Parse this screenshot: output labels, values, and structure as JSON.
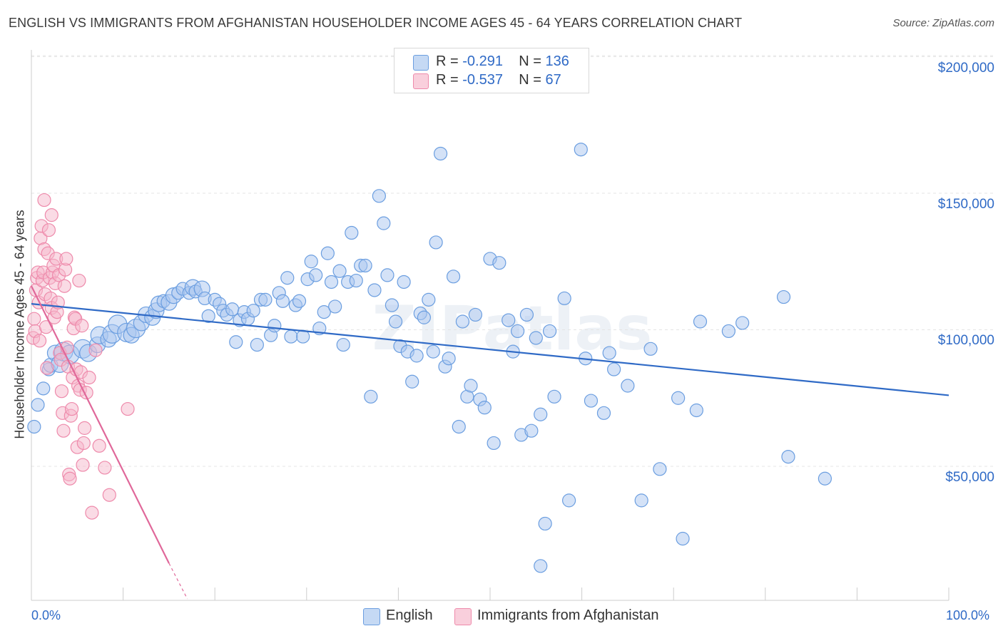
{
  "title": "ENGLISH VS IMMIGRANTS FROM AFGHANISTAN HOUSEHOLDER INCOME AGES 45 - 64 YEARS CORRELATION CHART",
  "source": "Source: ZipAtlas.com",
  "watermark": "ZIPatlas",
  "legend": {
    "rows": [
      {
        "r_label": "R = ",
        "r_value": "-0.291",
        "n_label": "N = ",
        "n_value": "136",
        "color": "#a9c6f0"
      },
      {
        "r_label": "R = ",
        "r_value": "-0.537",
        "n_label": "N = ",
        "n_value": "67",
        "color": "#f5b8cb"
      }
    ]
  },
  "chart_data": {
    "type": "scatter",
    "title": "ENGLISH VS IMMIGRANTS FROM AFGHANISTAN HOUSEHOLDER INCOME AGES 45 - 64 YEARS CORRELATION CHART",
    "xlabel": "",
    "ylabel": "Householder Income Ages 45 - 64 years",
    "xlim": [
      0,
      100
    ],
    "ylim": [
      5000,
      205000
    ],
    "x_tick_labels": [
      "0.0%",
      "100.0%"
    ],
    "y_ticks": [
      50000,
      100000,
      150000,
      200000
    ],
    "y_tick_labels": [
      "$50,000",
      "$100,000",
      "$150,000",
      "$200,000"
    ],
    "grid": true,
    "legend_position": "bottom",
    "series": [
      {
        "name": "English",
        "color": "#6b9ee0",
        "fill": "#a9c6f0",
        "trend": {
          "x": [
            0,
            100
          ],
          "y": [
            109500,
            76000
          ],
          "color": "#2f6ac6"
        },
        "points": [
          [
            0.3,
            64500,
            9
          ],
          [
            0.7,
            72500,
            9
          ],
          [
            1.3,
            78500,
            9
          ],
          [
            1.9,
            85500,
            9
          ],
          [
            2.1,
            87000,
            10
          ],
          [
            2.6,
            91500,
            11
          ],
          [
            3.1,
            87500,
            12
          ],
          [
            3.5,
            92000,
            13
          ],
          [
            4.2,
            91000,
            13
          ],
          [
            5.6,
            93000,
            13
          ],
          [
            6.2,
            91500,
            12
          ],
          [
            7.2,
            94500,
            11
          ],
          [
            7.4,
            98000,
            12
          ],
          [
            8.4,
            96500,
            11
          ],
          [
            8.8,
            98500,
            13
          ],
          [
            9.4,
            102000,
            13
          ],
          [
            10.4,
            99000,
            13
          ],
          [
            10.9,
            98000,
            11
          ],
          [
            11.4,
            100500,
            13
          ],
          [
            12.0,
            102500,
            11
          ],
          [
            12.5,
            105500,
            11
          ],
          [
            13.2,
            104500,
            11
          ],
          [
            13.6,
            107000,
            11
          ],
          [
            13.9,
            109500,
            11
          ],
          [
            14.4,
            110500,
            9
          ],
          [
            15.0,
            110000,
            11
          ],
          [
            15.5,
            112500,
            11
          ],
          [
            16.0,
            113500,
            9
          ],
          [
            16.5,
            115000,
            9
          ],
          [
            17.2,
            113500,
            9
          ],
          [
            17.6,
            115500,
            11
          ],
          [
            17.9,
            114000,
            9
          ],
          [
            18.6,
            115000,
            11
          ],
          [
            18.9,
            111500,
            9
          ],
          [
            19.3,
            105000,
            9
          ],
          [
            20.0,
            111000,
            9
          ],
          [
            20.5,
            109500,
            9
          ],
          [
            20.9,
            107000,
            9
          ],
          [
            21.3,
            105500,
            9
          ],
          [
            21.9,
            107500,
            9
          ],
          [
            22.3,
            95500,
            9
          ],
          [
            22.7,
            103500,
            9
          ],
          [
            23.2,
            106500,
            9
          ],
          [
            23.6,
            104000,
            9
          ],
          [
            24.2,
            107000,
            9
          ],
          [
            24.6,
            94500,
            9
          ],
          [
            25.0,
            111000,
            9
          ],
          [
            25.5,
            111000,
            9
          ],
          [
            26.1,
            98000,
            9
          ],
          [
            26.5,
            101500,
            9
          ],
          [
            27.0,
            113500,
            9
          ],
          [
            27.4,
            110500,
            9
          ],
          [
            27.9,
            119000,
            9
          ],
          [
            28.3,
            97500,
            9
          ],
          [
            28.8,
            109000,
            9
          ],
          [
            29.2,
            110500,
            9
          ],
          [
            29.6,
            97500,
            9
          ],
          [
            30.1,
            118500,
            9
          ],
          [
            30.5,
            125000,
            9
          ],
          [
            31.0,
            120000,
            9
          ],
          [
            31.4,
            100500,
            9
          ],
          [
            31.9,
            106500,
            9
          ],
          [
            32.3,
            128000,
            9
          ],
          [
            32.7,
            117500,
            9
          ],
          [
            33.1,
            108500,
            9
          ],
          [
            33.6,
            121500,
            9
          ],
          [
            34.0,
            94500,
            9
          ],
          [
            34.5,
            117500,
            9
          ],
          [
            34.9,
            135500,
            9
          ],
          [
            35.4,
            118000,
            9
          ],
          [
            35.9,
            123500,
            9
          ],
          [
            36.4,
            123500,
            9
          ],
          [
            37.0,
            75500,
            9
          ],
          [
            37.4,
            114500,
            9
          ],
          [
            37.9,
            149000,
            9
          ],
          [
            38.4,
            139000,
            9
          ],
          [
            38.8,
            120000,
            9
          ],
          [
            39.3,
            109000,
            9
          ],
          [
            39.7,
            103000,
            9
          ],
          [
            40.2,
            94000,
            9
          ],
          [
            40.6,
            117500,
            9
          ],
          [
            41.0,
            92000,
            9
          ],
          [
            41.5,
            81000,
            9
          ],
          [
            42.0,
            90500,
            9
          ],
          [
            42.4,
            106000,
            9
          ],
          [
            42.8,
            104500,
            9
          ],
          [
            43.3,
            111000,
            9
          ],
          [
            43.8,
            92000,
            9
          ],
          [
            44.1,
            132000,
            9
          ],
          [
            44.6,
            164500,
            9
          ],
          [
            45.1,
            86500,
            9
          ],
          [
            45.5,
            89500,
            9
          ],
          [
            46.0,
            119500,
            9
          ],
          [
            46.6,
            64500,
            9
          ],
          [
            47.0,
            103000,
            9
          ],
          [
            47.5,
            75500,
            9
          ],
          [
            47.9,
            79500,
            9
          ],
          [
            48.4,
            105500,
            9
          ],
          [
            48.9,
            74500,
            9
          ],
          [
            49.4,
            71500,
            9
          ],
          [
            50.0,
            126000,
            9
          ],
          [
            50.4,
            58500,
            9
          ],
          [
            51.0,
            124500,
            9
          ],
          [
            52.0,
            103500,
            9
          ],
          [
            52.5,
            92000,
            9
          ],
          [
            53.0,
            99500,
            9
          ],
          [
            53.4,
            61500,
            9
          ],
          [
            54.0,
            105500,
            9
          ],
          [
            54.5,
            63000,
            9
          ],
          [
            55.0,
            97000,
            9
          ],
          [
            55.5,
            69000,
            9
          ],
          [
            56.0,
            29000,
            9
          ],
          [
            57.0,
            75500,
            9
          ],
          [
            58.1,
            111500,
            9
          ],
          [
            58.6,
            37500,
            9
          ],
          [
            59.9,
            166000,
            9
          ],
          [
            60.4,
            89500,
            9
          ],
          [
            61.0,
            74000,
            9
          ],
          [
            62.4,
            69500,
            9
          ],
          [
            63.0,
            91500,
            9
          ],
          [
            63.5,
            85500,
            9
          ],
          [
            65.0,
            79500,
            9
          ],
          [
            66.5,
            37500,
            9
          ],
          [
            67.5,
            93000,
            9
          ],
          [
            68.5,
            49000,
            9
          ],
          [
            70.5,
            75000,
            9
          ],
          [
            71.0,
            23500,
            9
          ],
          [
            72.5,
            70500,
            9
          ],
          [
            72.9,
            103000,
            9
          ],
          [
            76.0,
            99500,
            9
          ],
          [
            77.5,
            102500,
            9
          ],
          [
            82.0,
            112000,
            9
          ],
          [
            82.5,
            53500,
            9
          ],
          [
            86.5,
            45500,
            9
          ],
          [
            55.5,
            13500,
            9
          ],
          [
            56.5,
            99500,
            9
          ]
        ]
      },
      {
        "name": "Immigrants from Afghanistan",
        "color": "#ee8aab",
        "fill": "#f5b8cb",
        "trend": {
          "x": [
            0,
            15
          ],
          "y": [
            116000,
            14500
          ],
          "dash_x": [
            15,
            17
          ],
          "dash_y": [
            14500,
            0
          ],
          "color": "#e0689a"
        },
        "points": [
          [
            0.2,
            97000,
            9
          ],
          [
            0.3,
            104000,
            9
          ],
          [
            0.4,
            99500,
            9
          ],
          [
            0.5,
            114500,
            9
          ],
          [
            0.6,
            119000,
            9
          ],
          [
            0.7,
            121000,
            9
          ],
          [
            0.8,
            110000,
            9
          ],
          [
            0.9,
            96000,
            9
          ],
          [
            1.0,
            133500,
            9
          ],
          [
            1.1,
            138000,
            9
          ],
          [
            1.2,
            118000,
            9
          ],
          [
            1.3,
            121000,
            9
          ],
          [
            1.4,
            129500,
            9
          ],
          [
            1.5,
            113000,
            9
          ],
          [
            1.6,
            101000,
            9
          ],
          [
            1.7,
            86000,
            9
          ],
          [
            1.8,
            128000,
            9
          ],
          [
            1.9,
            136500,
            9
          ],
          [
            2.0,
            119000,
            9
          ],
          [
            2.1,
            111500,
            9
          ],
          [
            2.2,
            108000,
            9
          ],
          [
            2.3,
            121000,
            9
          ],
          [
            2.4,
            123500,
            9
          ],
          [
            2.5,
            104500,
            9
          ],
          [
            2.6,
            117000,
            9
          ],
          [
            2.7,
            126000,
            9
          ],
          [
            2.8,
            106500,
            9
          ],
          [
            2.9,
            110000,
            9
          ],
          [
            3.0,
            120000,
            9
          ],
          [
            3.1,
            91500,
            9
          ],
          [
            3.2,
            89000,
            9
          ],
          [
            3.3,
            77500,
            9
          ],
          [
            3.4,
            69500,
            9
          ],
          [
            3.5,
            63000,
            9
          ],
          [
            3.6,
            116000,
            9
          ],
          [
            3.7,
            122000,
            9
          ],
          [
            3.8,
            126000,
            9
          ],
          [
            3.9,
            93500,
            9
          ],
          [
            4.0,
            86500,
            9
          ],
          [
            4.1,
            47000,
            9
          ],
          [
            4.2,
            45500,
            9
          ],
          [
            4.3,
            68500,
            9
          ],
          [
            4.4,
            71000,
            9
          ],
          [
            4.5,
            82500,
            9
          ],
          [
            4.6,
            100500,
            9
          ],
          [
            4.7,
            104500,
            9
          ],
          [
            4.8,
            104000,
            9
          ],
          [
            4.9,
            85500,
            9
          ],
          [
            5.0,
            57000,
            9
          ],
          [
            5.1,
            79500,
            9
          ],
          [
            5.2,
            118000,
            9
          ],
          [
            5.3,
            78000,
            9
          ],
          [
            5.4,
            84500,
            9
          ],
          [
            5.5,
            101500,
            9
          ],
          [
            5.6,
            50500,
            9
          ],
          [
            5.7,
            58500,
            9
          ],
          [
            5.8,
            64000,
            9
          ],
          [
            6.0,
            77000,
            9
          ],
          [
            6.3,
            82500,
            9
          ],
          [
            6.6,
            33000,
            9
          ],
          [
            7.0,
            92500,
            9
          ],
          [
            7.4,
            57500,
            9
          ],
          [
            8.0,
            49500,
            9
          ],
          [
            8.5,
            39500,
            9
          ],
          [
            1.4,
            147500,
            9
          ],
          [
            2.2,
            142000,
            9
          ],
          [
            10.5,
            71000,
            9
          ]
        ]
      }
    ]
  },
  "bottom_legend": [
    {
      "label": "English",
      "color": "#a9c6f0"
    },
    {
      "label": "Immigrants from Afghanistan",
      "color": "#f5b8cb"
    }
  ]
}
